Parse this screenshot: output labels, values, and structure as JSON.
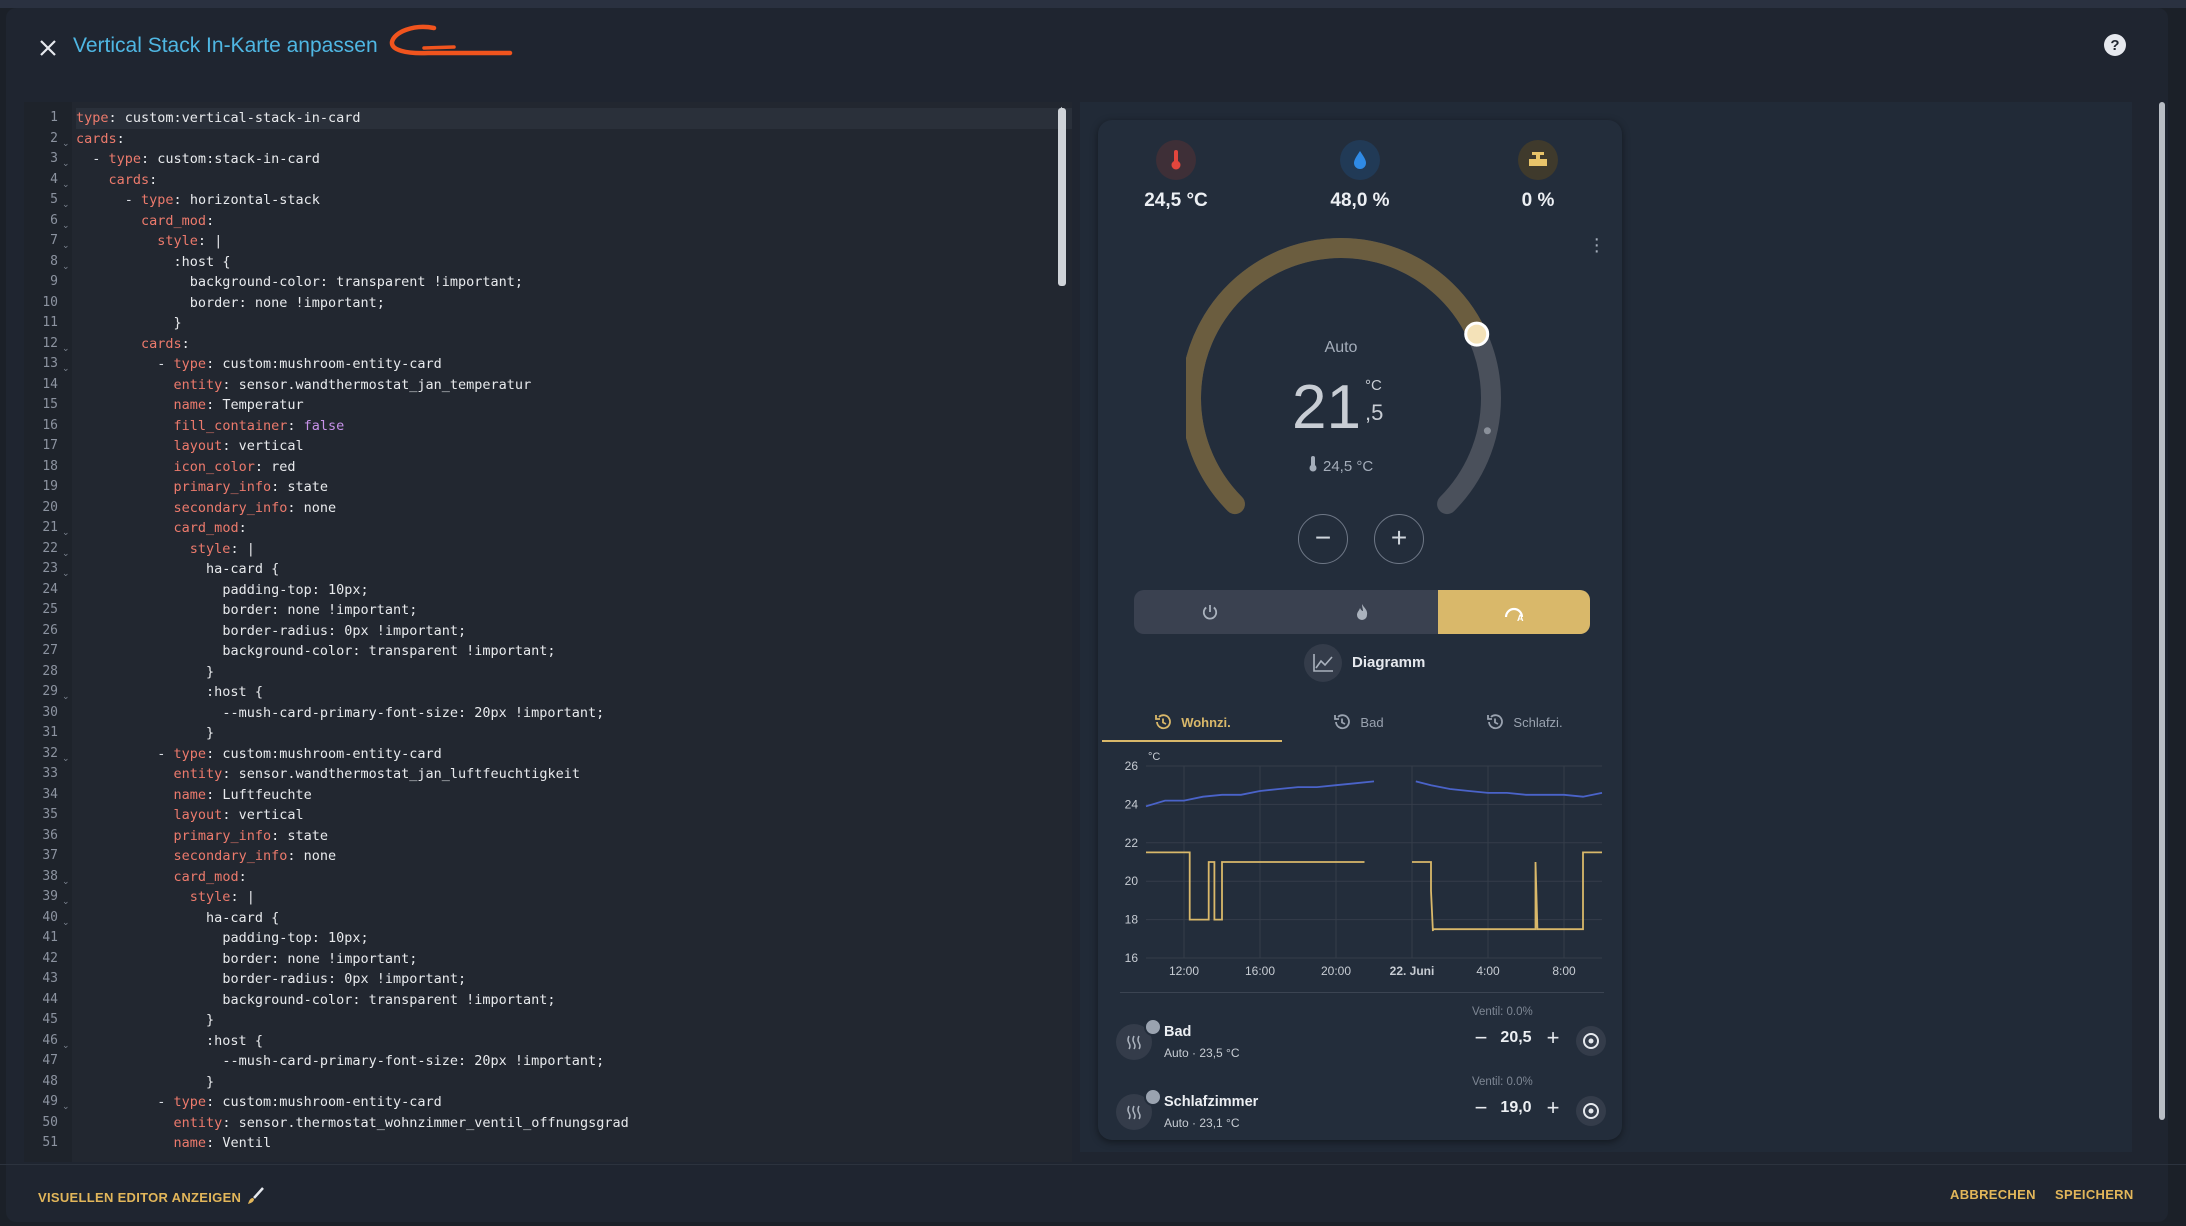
{
  "dialog": {
    "title": "Vertical Stack In-Karte anpassen"
  },
  "editor": {
    "lines": [
      {
        "n": "1",
        "indent": 0,
        "dash": false,
        "key": "type",
        "sep": ": ",
        "value": "custom:vertical-stack-in-card",
        "fold": false
      },
      {
        "n": "2",
        "indent": 0,
        "dash": false,
        "key": "cards",
        "sep": ":",
        "value": "",
        "fold": true
      },
      {
        "n": "3",
        "indent": 1,
        "dash": true,
        "key": "type",
        "sep": ": ",
        "value": "custom:stack-in-card",
        "fold": true
      },
      {
        "n": "4",
        "indent": 2,
        "dash": false,
        "key": "cards",
        "sep": ":",
        "value": "",
        "fold": true
      },
      {
        "n": "5",
        "indent": 3,
        "dash": true,
        "key": "type",
        "sep": ": ",
        "value": "horizontal-stack",
        "fold": true
      },
      {
        "n": "6",
        "indent": 4,
        "dash": false,
        "key": "card_mod",
        "sep": ":",
        "value": "",
        "fold": true
      },
      {
        "n": "7",
        "indent": 5,
        "dash": false,
        "key": "style",
        "sep": ": ",
        "value": "|",
        "fold": true
      },
      {
        "n": "8",
        "indent": 6,
        "dash": false,
        "key": "",
        "sep": "",
        "value": ":host {",
        "fold": true
      },
      {
        "n": "9",
        "indent": 7,
        "dash": false,
        "key": "",
        "sep": "",
        "value": "background-color: transparent !important;",
        "fold": false
      },
      {
        "n": "10",
        "indent": 7,
        "dash": false,
        "key": "",
        "sep": "",
        "value": "border: none !important;",
        "fold": false
      },
      {
        "n": "11",
        "indent": 6,
        "dash": false,
        "key": "",
        "sep": "",
        "value": "}",
        "fold": false
      },
      {
        "n": "12",
        "indent": 4,
        "dash": false,
        "key": "cards",
        "sep": ":",
        "value": "",
        "fold": true
      },
      {
        "n": "13",
        "indent": 5,
        "dash": true,
        "key": "type",
        "sep": ": ",
        "value": "custom:mushroom-entity-card",
        "fold": true
      },
      {
        "n": "14",
        "indent": 6,
        "dash": false,
        "key": "entity",
        "sep": ": ",
        "value": "sensor.wandthermostat_jan_temperatur",
        "fold": false
      },
      {
        "n": "15",
        "indent": 6,
        "dash": false,
        "key": "name",
        "sep": ": ",
        "value": "Temperatur",
        "fold": false
      },
      {
        "n": "16",
        "indent": 6,
        "dash": false,
        "key": "fill_container",
        "sep": ": ",
        "value": "false",
        "fold": false,
        "purple": true
      },
      {
        "n": "17",
        "indent": 6,
        "dash": false,
        "key": "layout",
        "sep": ": ",
        "value": "vertical",
        "fold": false
      },
      {
        "n": "18",
        "indent": 6,
        "dash": false,
        "key": "icon_color",
        "sep": ": ",
        "value": "red",
        "fold": false
      },
      {
        "n": "19",
        "indent": 6,
        "dash": false,
        "key": "primary_info",
        "sep": ": ",
        "value": "state",
        "fold": false
      },
      {
        "n": "20",
        "indent": 6,
        "dash": false,
        "key": "secondary_info",
        "sep": ": ",
        "value": "none",
        "fold": false
      },
      {
        "n": "21",
        "indent": 6,
        "dash": false,
        "key": "card_mod",
        "sep": ":",
        "value": "",
        "fold": true
      },
      {
        "n": "22",
        "indent": 7,
        "dash": false,
        "key": "style",
        "sep": ": ",
        "value": "|",
        "fold": true
      },
      {
        "n": "23",
        "indent": 8,
        "dash": false,
        "key": "",
        "sep": "",
        "value": "ha-card {",
        "fold": true
      },
      {
        "n": "24",
        "indent": 9,
        "dash": false,
        "key": "",
        "sep": "",
        "value": "padding-top: 10px;",
        "fold": false
      },
      {
        "n": "25",
        "indent": 9,
        "dash": false,
        "key": "",
        "sep": "",
        "value": "border: none !important;",
        "fold": false
      },
      {
        "n": "26",
        "indent": 9,
        "dash": false,
        "key": "",
        "sep": "",
        "value": "border-radius: 0px !important;",
        "fold": false
      },
      {
        "n": "27",
        "indent": 9,
        "dash": false,
        "key": "",
        "sep": "",
        "value": "background-color: transparent !important;",
        "fold": false
      },
      {
        "n": "28",
        "indent": 8,
        "dash": false,
        "key": "",
        "sep": "",
        "value": "}",
        "fold": false
      },
      {
        "n": "29",
        "indent": 8,
        "dash": false,
        "key": "",
        "sep": "",
        "value": ":host {",
        "fold": true
      },
      {
        "n": "30",
        "indent": 9,
        "dash": false,
        "key": "",
        "sep": "",
        "value": "--mush-card-primary-font-size: 20px !important;",
        "fold": false
      },
      {
        "n": "31",
        "indent": 8,
        "dash": false,
        "key": "",
        "sep": "",
        "value": "}",
        "fold": false
      },
      {
        "n": "32",
        "indent": 5,
        "dash": true,
        "key": "type",
        "sep": ": ",
        "value": "custom:mushroom-entity-card",
        "fold": true
      },
      {
        "n": "33",
        "indent": 6,
        "dash": false,
        "key": "entity",
        "sep": ": ",
        "value": "sensor.wandthermostat_jan_luftfeuchtigkeit",
        "fold": false
      },
      {
        "n": "34",
        "indent": 6,
        "dash": false,
        "key": "name",
        "sep": ": ",
        "value": "Luftfeuchte",
        "fold": false
      },
      {
        "n": "35",
        "indent": 6,
        "dash": false,
        "key": "layout",
        "sep": ": ",
        "value": "vertical",
        "fold": false
      },
      {
        "n": "36",
        "indent": 6,
        "dash": false,
        "key": "primary_info",
        "sep": ": ",
        "value": "state",
        "fold": false
      },
      {
        "n": "37",
        "indent": 6,
        "dash": false,
        "key": "secondary_info",
        "sep": ": ",
        "value": "none",
        "fold": false
      },
      {
        "n": "38",
        "indent": 6,
        "dash": false,
        "key": "card_mod",
        "sep": ":",
        "value": "",
        "fold": true
      },
      {
        "n": "39",
        "indent": 7,
        "dash": false,
        "key": "style",
        "sep": ": ",
        "value": "|",
        "fold": true
      },
      {
        "n": "40",
        "indent": 8,
        "dash": false,
        "key": "",
        "sep": "",
        "value": "ha-card {",
        "fold": true
      },
      {
        "n": "41",
        "indent": 9,
        "dash": false,
        "key": "",
        "sep": "",
        "value": "padding-top: 10px;",
        "fold": false
      },
      {
        "n": "42",
        "indent": 9,
        "dash": false,
        "key": "",
        "sep": "",
        "value": "border: none !important;",
        "fold": false
      },
      {
        "n": "43",
        "indent": 9,
        "dash": false,
        "key": "",
        "sep": "",
        "value": "border-radius: 0px !important;",
        "fold": false
      },
      {
        "n": "44",
        "indent": 9,
        "dash": false,
        "key": "",
        "sep": "",
        "value": "background-color: transparent !important;",
        "fold": false
      },
      {
        "n": "45",
        "indent": 8,
        "dash": false,
        "key": "",
        "sep": "",
        "value": "}",
        "fold": false
      },
      {
        "n": "46",
        "indent": 8,
        "dash": false,
        "key": "",
        "sep": "",
        "value": ":host {",
        "fold": true
      },
      {
        "n": "47",
        "indent": 9,
        "dash": false,
        "key": "",
        "sep": "",
        "value": "--mush-card-primary-font-size: 20px !important;",
        "fold": false
      },
      {
        "n": "48",
        "indent": 8,
        "dash": false,
        "key": "",
        "sep": "",
        "value": "}",
        "fold": false
      },
      {
        "n": "49",
        "indent": 5,
        "dash": true,
        "key": "type",
        "sep": ": ",
        "value": "custom:mushroom-entity-card",
        "fold": true
      },
      {
        "n": "50",
        "indent": 6,
        "dash": false,
        "key": "entity",
        "sep": ": ",
        "value": "sensor.thermostat_wohnzimmer_ventil_offnungsgrad",
        "fold": false
      },
      {
        "n": "51",
        "indent": 6,
        "dash": false,
        "key": "name",
        "sep": ": ",
        "value": "Ventil",
        "fold": false
      }
    ]
  },
  "preview": {
    "sensors": [
      {
        "value": "24,5 °C",
        "icon": "thermometer-icon",
        "color": "#e2463d"
      },
      {
        "value": "48,0 %",
        "icon": "water-drop-icon",
        "color": "#2f8ae5"
      },
      {
        "value": "0 %",
        "icon": "valve-icon",
        "color": "#e8c46a"
      }
    ],
    "thermostat": {
      "mode": "Auto",
      "target_whole": "21",
      "target_decimal": ",5",
      "unit": "°C",
      "current": "24,5 °C",
      "target_level": 0.74,
      "current_level": 0.88
    },
    "mode_buttons": [
      {
        "name": "power-mode",
        "icon": "power-icon",
        "active": false
      },
      {
        "name": "heat-mode",
        "icon": "flame-icon",
        "active": false
      },
      {
        "name": "auto-mode",
        "icon": "auto-thermostat-icon",
        "active": true
      }
    ],
    "diagram_label": "Diagramm",
    "tabs": [
      {
        "label": "Wohnzi.",
        "active": true
      },
      {
        "label": "Bad",
        "active": false
      },
      {
        "label": "Schlafzi.",
        "active": false
      }
    ],
    "rooms": [
      {
        "name": "Bad",
        "sub": "Auto · 23,5 °C",
        "ventil": "Ventil: 0.0%",
        "target": "20,5"
      },
      {
        "name": "Schlafzimmer",
        "sub": "Auto · 23,1 °C",
        "ventil": "Ventil: 0.0%",
        "target": "19,0"
      }
    ]
  },
  "chart_data": {
    "type": "line",
    "ylabel": "°C",
    "ylim": [
      16,
      26
    ],
    "yticks": [
      "26",
      "24",
      "22",
      "20",
      "18",
      "16"
    ],
    "xticks": [
      {
        "label": "12:00",
        "bold": false,
        "x": 12
      },
      {
        "label": "16:00",
        "bold": false,
        "x": 16
      },
      {
        "label": "20:00",
        "bold": false,
        "x": 20
      },
      {
        "label": "22. Juni",
        "bold": true,
        "x": 24
      },
      {
        "label": "4:00",
        "bold": false,
        "x": 28
      },
      {
        "label": "8:00",
        "bold": false,
        "x": 32
      }
    ],
    "xlim": [
      10,
      34
    ],
    "series": [
      {
        "color": "#4a63c9",
        "points": [
          [
            10,
            23.9
          ],
          [
            11,
            24.2
          ],
          [
            12,
            24.2
          ],
          [
            13,
            24.4
          ],
          [
            14,
            24.5
          ],
          [
            15,
            24.5
          ],
          [
            16,
            24.7
          ],
          [
            17,
            24.8
          ],
          [
            18,
            24.9
          ],
          [
            19,
            24.9
          ],
          [
            20,
            25.0
          ],
          [
            21,
            25.1
          ],
          [
            22,
            25.2
          ],
          [
            23.3,
            null
          ],
          [
            24.2,
            25.2
          ],
          [
            25,
            25.0
          ],
          [
            26,
            24.8
          ],
          [
            27,
            24.7
          ],
          [
            28,
            24.6
          ],
          [
            29,
            24.6
          ],
          [
            30,
            24.5
          ],
          [
            31,
            24.5
          ],
          [
            32,
            24.5
          ],
          [
            33,
            24.4
          ],
          [
            34,
            24.6
          ]
        ]
      },
      {
        "color": "#d9b86a",
        "points": [
          [
            10,
            21.5
          ],
          [
            12.3,
            21.5
          ],
          [
            12.3,
            18.0
          ],
          [
            13.3,
            18.0
          ],
          [
            13.3,
            21.0
          ],
          [
            13.6,
            21.0
          ],
          [
            13.6,
            18.0
          ],
          [
            14.0,
            18.0
          ],
          [
            14.0,
            21.0
          ],
          [
            21.5,
            21.0
          ],
          [
            21.5,
            null
          ],
          [
            24.0,
            21.0
          ],
          [
            25.0,
            21.0
          ],
          [
            25.0,
            19.5
          ],
          [
            25.1,
            17.4
          ],
          [
            25.1,
            17.5
          ],
          [
            30.5,
            17.5
          ],
          [
            30.5,
            21.0
          ],
          [
            30.6,
            17.5
          ],
          [
            33.0,
            17.5
          ],
          [
            33.0,
            21.5
          ],
          [
            34,
            21.5
          ]
        ]
      }
    ]
  },
  "footer": {
    "left_button": "VISUELLEN EDITOR ANZEIGEN",
    "cancel": "ABBRECHEN",
    "save": "SPEICHERN"
  }
}
